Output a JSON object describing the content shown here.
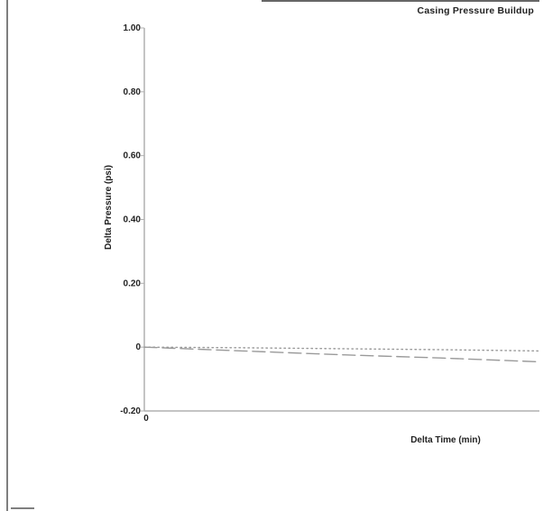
{
  "chart_data": {
    "type": "line",
    "title": "Casing Pressure Buildup",
    "xlabel": "Delta Time (min)",
    "ylabel": "Delta Pressure (psi)",
    "xlim": [
      0,
      100
    ],
    "ylim": [
      -0.2,
      1.0
    ],
    "x_tick_labels": [
      "0"
    ],
    "y_ticks": [
      1.0,
      0.8,
      0.6,
      0.4,
      0.2,
      0,
      -0.2
    ],
    "y_tick_labels": [
      "1.00",
      "0.80",
      "0.60",
      "0.40",
      "0.20",
      "0",
      "-0.20"
    ],
    "grid": false,
    "series": [
      {
        "style": "dotted",
        "color": "#9a9a9a",
        "x": [
          0,
          25,
          50,
          75,
          100
        ],
        "y": [
          0.0,
          -0.002,
          -0.005,
          -0.008,
          -0.012
        ]
      },
      {
        "style": "dashed",
        "color": "#9a9a9a",
        "x": [
          0,
          25,
          50,
          75,
          100
        ],
        "y": [
          0.0,
          -0.012,
          -0.024,
          -0.034,
          -0.046
        ]
      }
    ]
  },
  "colors": {
    "axis": "#b0b0b0",
    "left_border": "#7f7f7f",
    "text": "#222222",
    "top_rule": "#333333"
  }
}
